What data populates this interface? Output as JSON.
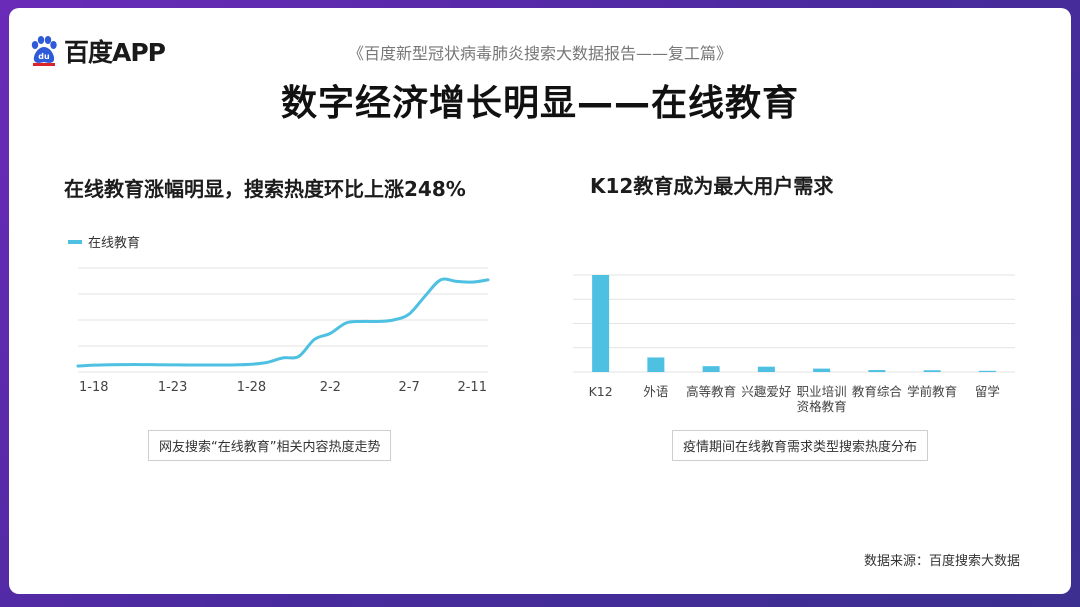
{
  "brand": {
    "name": "百度APP"
  },
  "report_title": "《百度新型冠状病毒肺炎搜索大数据报告——复工篇》",
  "main_title": "数字经济增长明显——在线教育",
  "left_panel": {
    "subtitle": "在线教育涨幅明显，搜索热度环比上涨248%",
    "caption": "网友搜索“在线教育”相关内容热度走势"
  },
  "right_panel": {
    "subtitle": "K12教育成为最大用户需求",
    "caption": "疫情期间在线教育需求类型搜索热度分布"
  },
  "source": "数据来源：百度搜索大数据",
  "colors": {
    "series": "#4ec0e2",
    "grid": "#e3e3e3"
  },
  "chart_data": [
    {
      "type": "line",
      "legend_position": "top-left",
      "grid": true,
      "series": [
        {
          "name": "在线教育",
          "x": [
            "1-17",
            "1-18",
            "1-19",
            "1-20",
            "1-21",
            "1-22",
            "1-23",
            "1-24",
            "1-25",
            "1-26",
            "1-27",
            "1-28",
            "1-29",
            "1-30",
            "1-31",
            "2-1",
            "2-2",
            "2-3",
            "2-4",
            "2-5",
            "2-6",
            "2-7",
            "2-8",
            "2-9",
            "2-10",
            "2-11",
            "2-12"
          ],
          "values": [
            4,
            4.6,
            4.9,
            5.0,
            5.0,
            4.9,
            4.8,
            4.7,
            4.7,
            4.7,
            4.8,
            5.2,
            6.5,
            9.5,
            10.5,
            22,
            26,
            33,
            34,
            34,
            35,
            39,
            51,
            62,
            61,
            60.5,
            62
          ]
        }
      ],
      "x_ticks": [
        "1-18",
        "1-23",
        "1-28",
        "2-2",
        "2-7",
        "2-11"
      ],
      "ylim": [
        0,
        70
      ]
    },
    {
      "type": "bar",
      "grid": true,
      "categories": [
        "K12",
        "外语",
        "高等教育",
        "兴趣爱好",
        "职业培训资格教育",
        "教育综合",
        "学前教育",
        "留学"
      ],
      "category_lines": [
        [
          "K12"
        ],
        [
          "外语"
        ],
        [
          "高等教育"
        ],
        [
          "兴趣爱好"
        ],
        [
          "职业培训",
          "资格教育"
        ],
        [
          "教育综合"
        ],
        [
          "学前教育"
        ],
        [
          "留学"
        ]
      ],
      "values": [
        100,
        15,
        6,
        5.5,
        3.5,
        2,
        1.8,
        1.2
      ],
      "ylim": [
        0,
        100
      ]
    }
  ]
}
